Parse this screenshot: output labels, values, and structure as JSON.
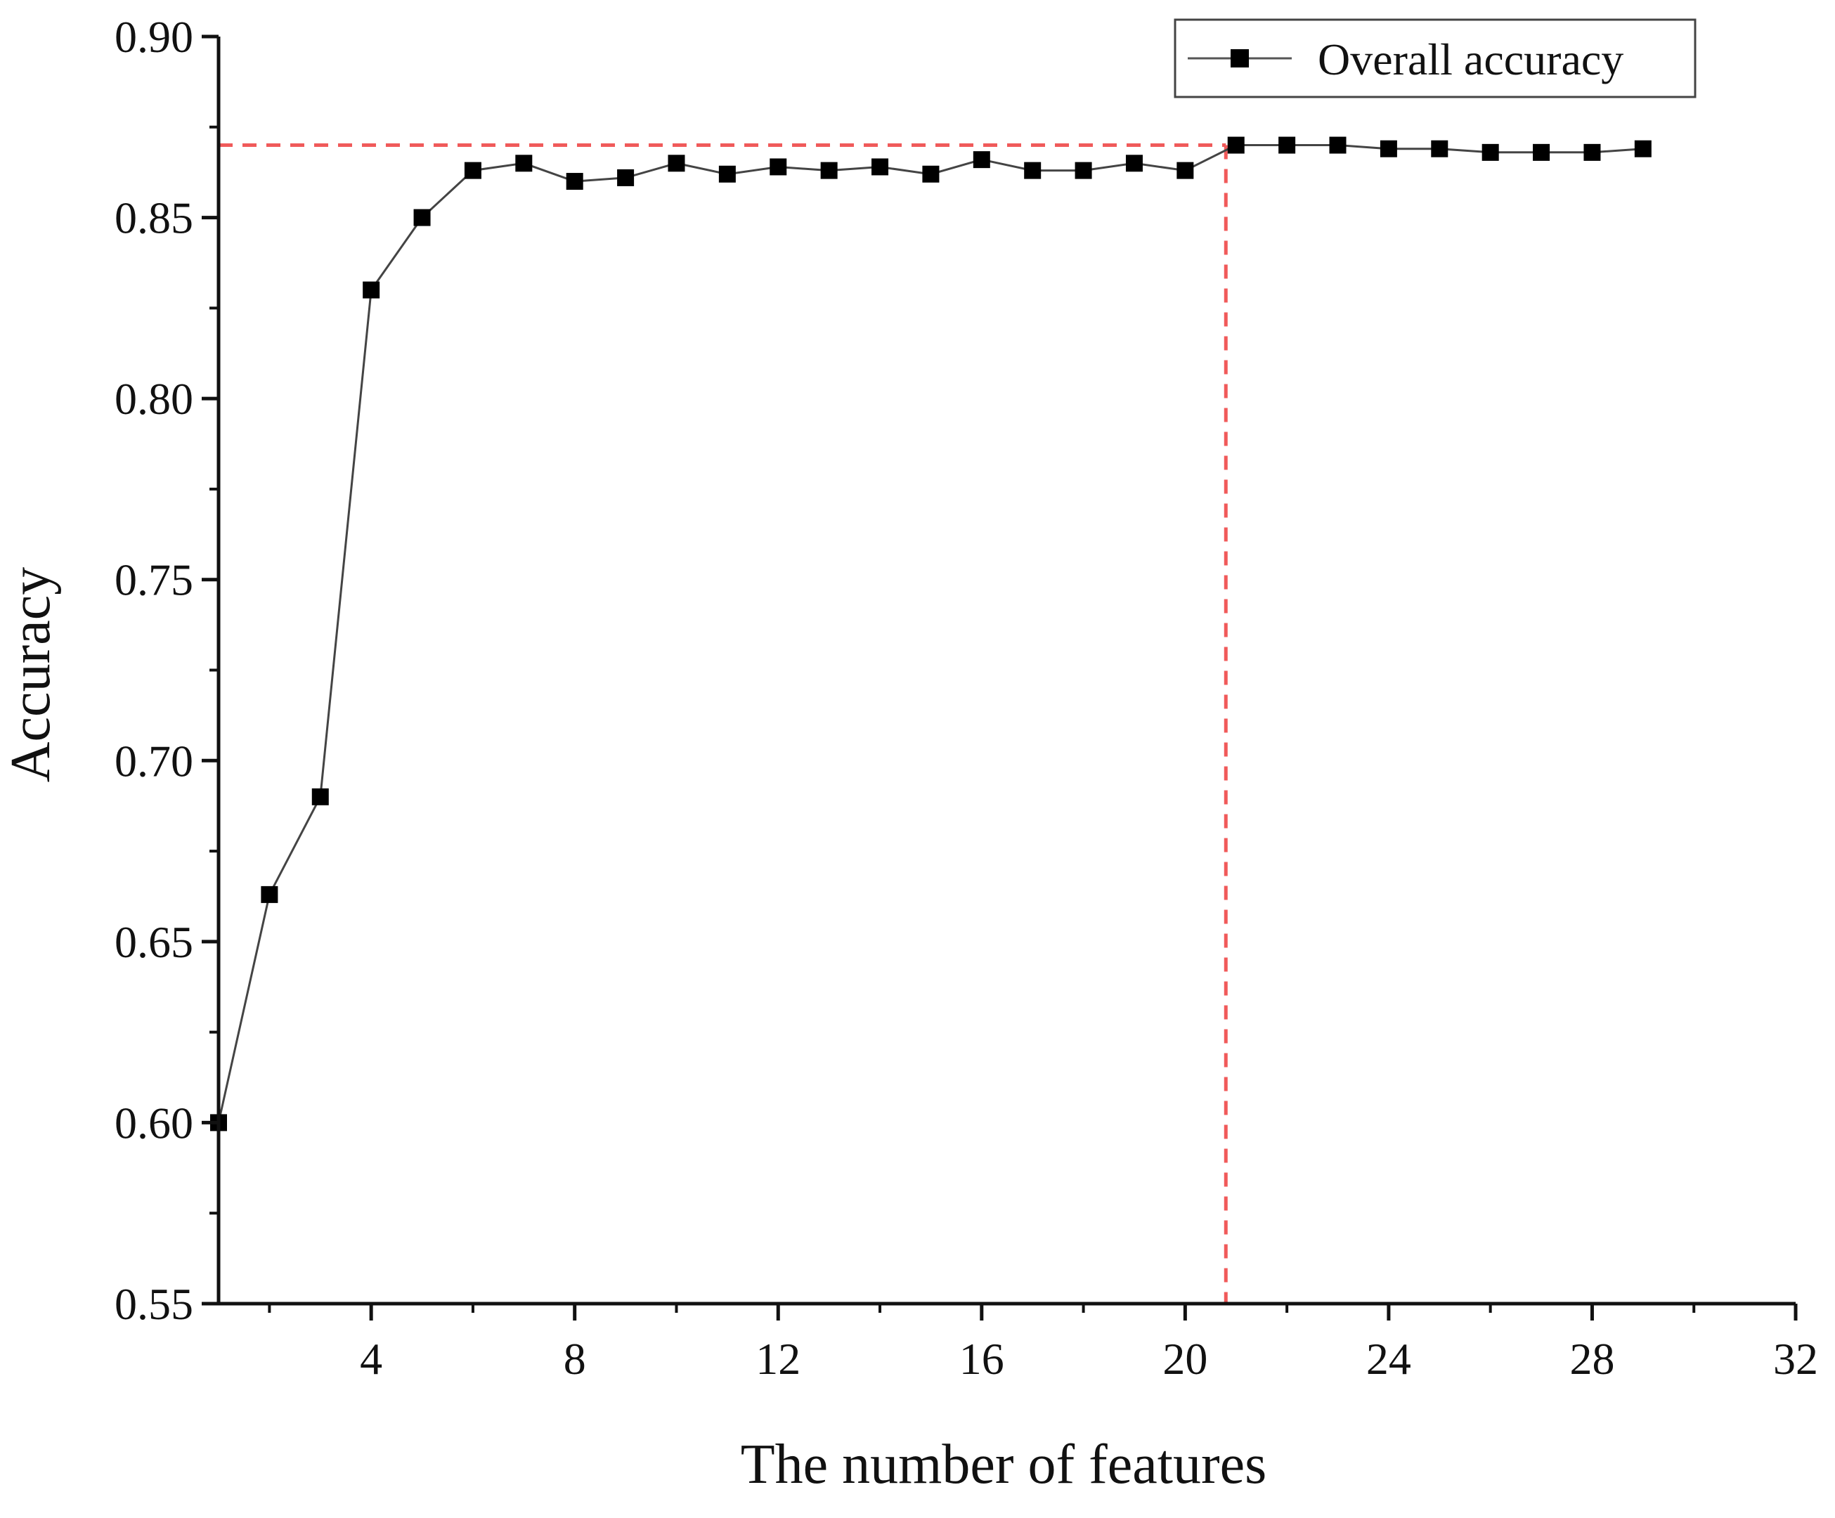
{
  "chart_data": {
    "type": "line",
    "title": "",
    "xlabel": "The number of features",
    "ylabel": "Accuracy",
    "xlim": [
      1,
      32
    ],
    "ylim": [
      0.55,
      0.9
    ],
    "x_ticks": [
      4,
      8,
      12,
      16,
      20,
      24,
      28,
      32
    ],
    "x_tick_labels": [
      "4",
      "8",
      "12",
      "16",
      "20",
      "24",
      "28",
      "32"
    ],
    "x_minor_ticks": [
      2,
      6,
      10,
      14,
      18,
      22,
      26,
      30
    ],
    "y_ticks": [
      0.55,
      0.6,
      0.65,
      0.7,
      0.75,
      0.8,
      0.85,
      0.9
    ],
    "y_tick_labels": [
      "0.55",
      "0.60",
      "0.65",
      "0.70",
      "0.75",
      "0.80",
      "0.85",
      "0.90"
    ],
    "y_minor_ticks": [
      0.575,
      0.625,
      0.675,
      0.725,
      0.775,
      0.825,
      0.875
    ],
    "grid": false,
    "legend_position": "top-right",
    "series": [
      {
        "name": "Overall accuracy",
        "marker": "square",
        "color": "#000000",
        "x": [
          1,
          2,
          3,
          4,
          5,
          6,
          7,
          8,
          9,
          10,
          11,
          12,
          13,
          14,
          15,
          16,
          17,
          18,
          19,
          20,
          21,
          22,
          23,
          24,
          25,
          26,
          27,
          28,
          29
        ],
        "y": [
          0.6,
          0.663,
          0.69,
          0.83,
          0.85,
          0.863,
          0.865,
          0.86,
          0.861,
          0.865,
          0.862,
          0.864,
          0.863,
          0.864,
          0.862,
          0.866,
          0.863,
          0.863,
          0.865,
          0.863,
          0.87,
          0.87,
          0.87,
          0.869,
          0.869,
          0.868,
          0.868,
          0.868,
          0.869
        ]
      }
    ],
    "reference_lines": {
      "color": "#f05a5a",
      "style": "dashed",
      "horizontal_y": 0.87,
      "vertical_x": 20.8
    }
  }
}
